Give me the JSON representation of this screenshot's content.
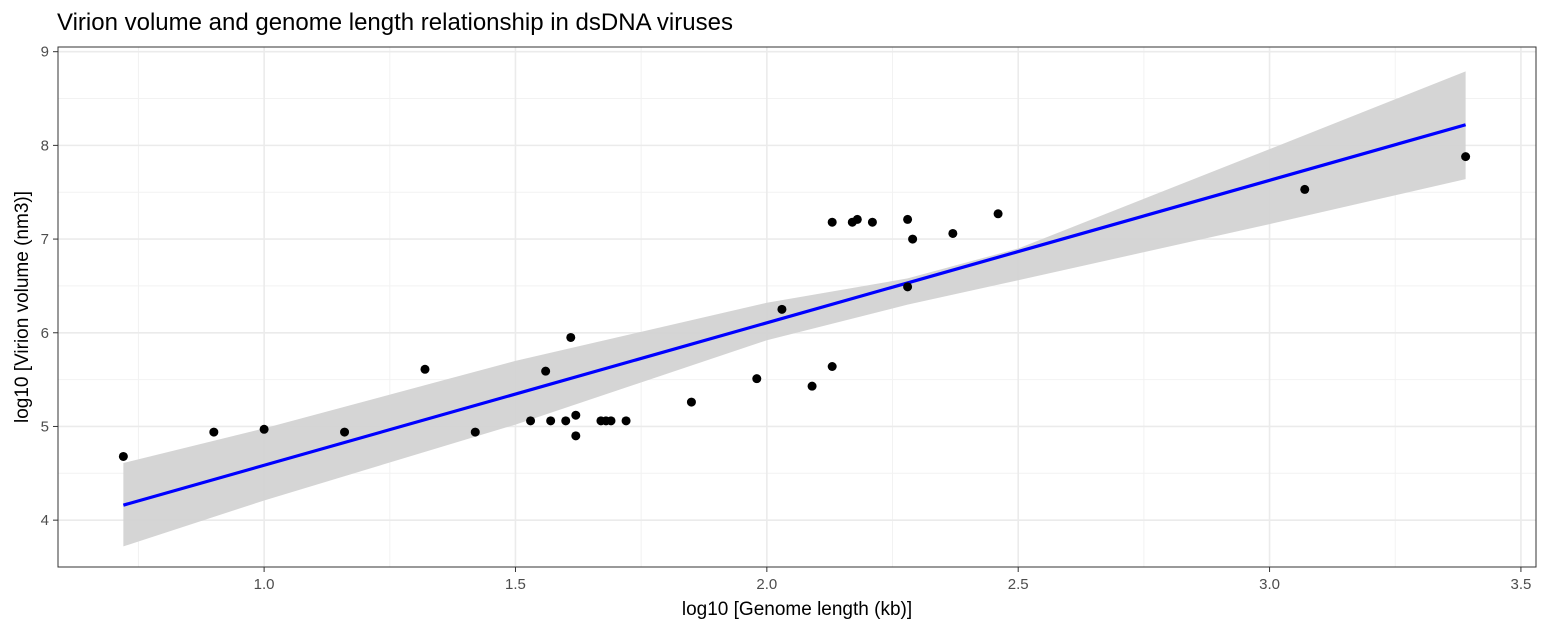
{
  "chart_data": {
    "type": "scatter",
    "title": "Virion volume and genome length relationship in dsDNA viruses",
    "xlabel": "log10 [Genome length (kb)]",
    "ylabel": "log10 [Virion volume (nm3)]",
    "xlim": [
      0.59,
      3.53
    ],
    "ylim": [
      3.5,
      9.05
    ],
    "xticks": [
      "1.0",
      "1.5",
      "2.0",
      "2.5",
      "3.0",
      "3.5"
    ],
    "xtick_values": [
      1.0,
      1.5,
      2.0,
      2.5,
      3.0,
      3.5
    ],
    "yticks": [
      "4",
      "5",
      "6",
      "7",
      "8",
      "9"
    ],
    "ytick_values": [
      4,
      5,
      6,
      7,
      8,
      9
    ],
    "grid": true,
    "theme": "bw",
    "point_color": "#000000",
    "points": [
      {
        "x": 0.72,
        "y": 4.68
      },
      {
        "x": 0.9,
        "y": 4.94
      },
      {
        "x": 1.0,
        "y": 4.97
      },
      {
        "x": 1.16,
        "y": 4.94
      },
      {
        "x": 1.32,
        "y": 5.61
      },
      {
        "x": 1.42,
        "y": 4.94
      },
      {
        "x": 1.53,
        "y": 5.06
      },
      {
        "x": 1.56,
        "y": 5.59
      },
      {
        "x": 1.57,
        "y": 5.06
      },
      {
        "x": 1.6,
        "y": 5.06
      },
      {
        "x": 1.61,
        "y": 5.95
      },
      {
        "x": 1.62,
        "y": 4.9
      },
      {
        "x": 1.62,
        "y": 5.12
      },
      {
        "x": 1.67,
        "y": 5.06
      },
      {
        "x": 1.68,
        "y": 5.06
      },
      {
        "x": 1.69,
        "y": 5.06
      },
      {
        "x": 1.72,
        "y": 5.06
      },
      {
        "x": 1.85,
        "y": 5.26
      },
      {
        "x": 1.98,
        "y": 5.51
      },
      {
        "x": 2.03,
        "y": 6.25
      },
      {
        "x": 2.09,
        "y": 5.43
      },
      {
        "x": 2.13,
        "y": 5.64
      },
      {
        "x": 2.13,
        "y": 7.18
      },
      {
        "x": 2.17,
        "y": 7.18
      },
      {
        "x": 2.18,
        "y": 7.21
      },
      {
        "x": 2.21,
        "y": 7.18
      },
      {
        "x": 2.28,
        "y": 7.21
      },
      {
        "x": 2.28,
        "y": 6.49
      },
      {
        "x": 2.29,
        "y": 7.0
      },
      {
        "x": 2.37,
        "y": 7.06
      },
      {
        "x": 2.46,
        "y": 7.27
      },
      {
        "x": 3.07,
        "y": 7.53
      },
      {
        "x": 3.39,
        "y": 7.88
      }
    ],
    "fit": {
      "method": "linear",
      "color": "#0000ff",
      "x": [
        0.72,
        3.39
      ],
      "y": [
        4.16,
        8.22
      ]
    },
    "confidence_band": {
      "color": "#d3d3d3",
      "x": [
        0.72,
        1.0,
        1.5,
        2.0,
        2.28,
        2.5,
        3.0,
        3.39
      ],
      "lower": [
        3.72,
        4.21,
        5.02,
        5.92,
        6.3,
        6.56,
        7.16,
        7.64
      ],
      "upper": [
        4.61,
        4.98,
        5.7,
        6.32,
        6.58,
        6.9,
        7.96,
        8.79
      ]
    }
  }
}
